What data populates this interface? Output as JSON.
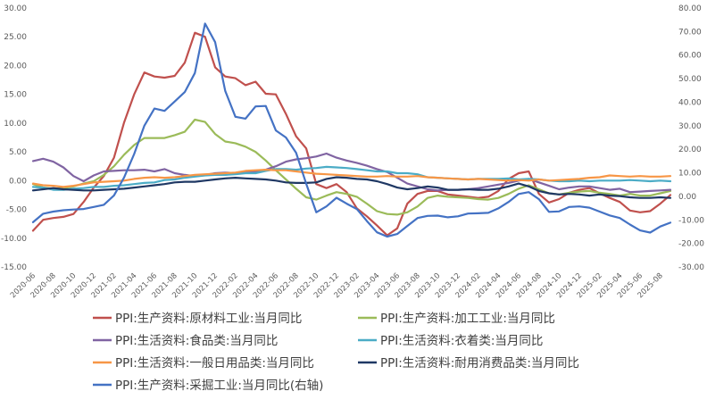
{
  "chart_data": {
    "type": "line",
    "x": [
      "2020-06",
      "2020-07",
      "2020-08",
      "2020-09",
      "2020-10",
      "2020-11",
      "2020-12",
      "2021-01",
      "2021-02",
      "2021-03",
      "2021-04",
      "2021-05",
      "2021-06",
      "2021-07",
      "2021-08",
      "2021-09",
      "2021-10",
      "2021-11",
      "2021-12",
      "2022-01",
      "2022-02",
      "2022-03",
      "2022-04",
      "2022-05",
      "2022-06",
      "2022-07",
      "2022-08",
      "2022-09",
      "2022-10",
      "2022-11",
      "2022-12",
      "2023-01",
      "2023-02",
      "2023-03",
      "2023-04",
      "2023-05",
      "2023-06",
      "2023-07",
      "2023-08",
      "2023-09",
      "2023-10",
      "2023-11",
      "2023-12",
      "2024-01",
      "2024-02",
      "2024-03",
      "2024-04",
      "2024-05",
      "2024-06",
      "2024-07",
      "2024-08",
      "2024-09",
      "2024-10",
      "2024-11",
      "2024-12",
      "2025-01",
      "2025-02",
      "2025-03",
      "2025-04",
      "2025-05",
      "2025-06",
      "2025-07",
      "2025-08",
      "2025-09"
    ],
    "x_tick_labels": [
      "2020-06",
      "2020-08",
      "2020-10",
      "2020-12",
      "2021-02",
      "2021-04",
      "2021-06",
      "2021-08",
      "2021-10",
      "2021-12",
      "2022-02",
      "2022-04",
      "2022-06",
      "2022-08",
      "2022-10",
      "2022-12",
      "2023-02",
      "2023-04",
      "2023-06",
      "2023-08",
      "2023-10",
      "2023-12",
      "2024-02",
      "2024-04",
      "2024-06",
      "2024-08",
      "2024-10",
      "2024-12",
      "2025-02",
      "2025-04",
      "2025-06",
      "2025-08"
    ],
    "y_left": {
      "min": -15,
      "max": 30,
      "step": 5,
      "tick_labels": [
        "30.00",
        "25.00",
        "20.00",
        "15.00",
        "10.00",
        "5.00",
        "0.00",
        "-5.00",
        "-10.00",
        "-15.00"
      ]
    },
    "y_right": {
      "min": -30,
      "max": 80,
      "step": 10,
      "tick_labels": [
        "80.00",
        "70.00",
        "60.00",
        "50.00",
        "40.00",
        "30.00",
        "20.00",
        "10.00",
        "0.00",
        "-10.00",
        "-20.00",
        "-30.00"
      ]
    },
    "grid": false,
    "legend_position": "bottom",
    "series": [
      {
        "name": "PPI:生产资料:原材料工业:当月同比",
        "color": "#c0504d",
        "axis": "left",
        "values": [
          -8.7,
          -6.8,
          -6.5,
          -6.3,
          -5.8,
          -3.7,
          -1.2,
          0.8,
          4.0,
          10.1,
          15.0,
          18.8,
          18.1,
          17.9,
          18.2,
          20.5,
          25.7,
          25.0,
          19.7,
          18.1,
          17.8,
          16.6,
          17.2,
          15.1,
          15.0,
          11.6,
          7.7,
          5.6,
          -0.6,
          -1.3,
          -0.6,
          -2.0,
          -4.8,
          -6.2,
          -7.8,
          -9.5,
          -8.3,
          -4.0,
          -2.3,
          -1.8,
          -1.8,
          -2.4,
          -2.6,
          -2.8,
          -3.0,
          -2.8,
          -1.8,
          0.3,
          1.3,
          1.6,
          -2.3,
          -3.8,
          -3.2,
          -2.1,
          -1.6,
          -1.3,
          -2.2,
          -3.0,
          -3.7,
          -5.2,
          -5.5,
          -5.3,
          -4.0,
          -2.5
        ]
      },
      {
        "name": "PPI:生产资料:加工工业:当月同比",
        "color": "#9bbb59",
        "axis": "left",
        "values": [
          -0.6,
          -1.2,
          -1.4,
          -1.3,
          -1.0,
          -0.5,
          -0.1,
          1.0,
          2.5,
          4.5,
          6.2,
          7.4,
          7.4,
          7.4,
          7.9,
          8.5,
          10.6,
          10.2,
          8.1,
          6.8,
          6.5,
          5.9,
          5.0,
          3.5,
          1.8,
          0.2,
          -1.4,
          -2.9,
          -3.3,
          -2.6,
          -2.0,
          -2.3,
          -2.8,
          -4.0,
          -5.3,
          -5.8,
          -5.9,
          -5.5,
          -4.5,
          -3.0,
          -2.6,
          -2.8,
          -2.9,
          -3.0,
          -3.2,
          -3.3,
          -3.0,
          -2.3,
          -1.4,
          -0.8,
          -1.5,
          -2.2,
          -2.4,
          -2.1,
          -1.9,
          -1.8,
          -2.1,
          -2.3,
          -2.6,
          -2.3,
          -2.6,
          -2.6,
          -2.2,
          -1.8
        ]
      },
      {
        "name": "PPI:生活资料:食品类:当月同比",
        "color": "#8064a2",
        "axis": "left",
        "values": [
          3.4,
          3.8,
          3.3,
          2.3,
          0.8,
          -0.1,
          0.9,
          1.6,
          1.7,
          1.8,
          1.8,
          1.9,
          1.6,
          2.0,
          1.3,
          1.0,
          0.8,
          1.0,
          1.3,
          1.4,
          1.3,
          1.5,
          1.6,
          1.9,
          2.5,
          3.3,
          3.7,
          3.9,
          4.2,
          4.7,
          4.0,
          3.5,
          3.1,
          2.6,
          2.0,
          1.5,
          0.5,
          -0.5,
          -1.0,
          -1.5,
          -1.7,
          -1.6,
          -1.6,
          -1.5,
          -1.3,
          -1.0,
          -0.7,
          -0.4,
          0.0,
          0.3,
          -0.3,
          -0.9,
          -1.5,
          -1.2,
          -1.0,
          -1.0,
          -1.3,
          -1.6,
          -1.4,
          -2.0,
          -1.9,
          -1.8,
          -1.7,
          -1.6
        ]
      },
      {
        "name": "PPI:生活资料:衣着类:当月同比",
        "color": "#4bacc6",
        "axis": "left",
        "values": [
          -1.1,
          -1.2,
          -1.6,
          -1.6,
          -1.4,
          -1.3,
          -1.1,
          -1.1,
          -0.9,
          -0.8,
          -0.6,
          -0.4,
          -0.3,
          0.1,
          0.2,
          0.5,
          0.7,
          0.9,
          1.0,
          1.0,
          1.1,
          1.3,
          1.3,
          1.7,
          2.0,
          2.0,
          1.9,
          2.1,
          2.2,
          2.4,
          2.3,
          2.2,
          2.0,
          1.8,
          1.6,
          1.6,
          1.3,
          1.3,
          1.1,
          0.6,
          0.5,
          0.4,
          0.3,
          0.2,
          0.3,
          0.3,
          0.3,
          0.4,
          0.2,
          0.3,
          0.2,
          0.0,
          -0.1,
          -0.1,
          0.0,
          -0.1,
          0.0,
          0.0,
          0.0,
          0.1,
          0.0,
          -0.1,
          0.0,
          -0.1
        ]
      },
      {
        "name": "PPI:生活资料:一般日用品类:当月同比",
        "color": "#f79646",
        "axis": "left",
        "values": [
          -0.5,
          -0.8,
          -0.9,
          -1.1,
          -0.9,
          -0.6,
          -0.3,
          -0.2,
          -0.1,
          0.0,
          0.3,
          0.5,
          0.6,
          0.5,
          0.6,
          0.8,
          1.0,
          1.1,
          1.2,
          1.3,
          1.4,
          1.7,
          1.8,
          1.9,
          1.8,
          1.8,
          1.6,
          1.4,
          1.2,
          1.1,
          1.0,
          0.9,
          0.8,
          0.7,
          0.7,
          0.8,
          0.7,
          0.7,
          0.8,
          0.6,
          0.5,
          0.4,
          0.3,
          0.2,
          0.3,
          0.2,
          0.1,
          0.0,
          0.1,
          0.0,
          0.2,
          0.0,
          0.1,
          0.2,
          0.3,
          0.5,
          0.6,
          0.9,
          0.8,
          0.7,
          0.8,
          0.7,
          0.7,
          0.8
        ]
      },
      {
        "name": "PPI:生活资料:耐用消费品类:当月同比",
        "color": "#1f3864",
        "axis": "left",
        "values": [
          -1.7,
          -1.5,
          -1.3,
          -1.5,
          -1.6,
          -1.7,
          -1.7,
          -1.6,
          -1.5,
          -1.4,
          -1.2,
          -1.0,
          -0.8,
          -0.6,
          -0.3,
          -0.2,
          -0.2,
          0.0,
          0.2,
          0.4,
          0.5,
          0.4,
          0.3,
          0.2,
          0.0,
          -0.3,
          -0.4,
          -0.4,
          -0.3,
          0.3,
          0.6,
          0.5,
          0.3,
          0.2,
          -0.1,
          -0.6,
          -1.2,
          -1.5,
          -1.3,
          -1.0,
          -1.2,
          -1.6,
          -1.6,
          -1.5,
          -1.6,
          -1.6,
          -1.4,
          -1.0,
          -0.5,
          -1.0,
          -1.8,
          -2.2,
          -2.4,
          -2.3,
          -2.4,
          -2.6,
          -2.4,
          -2.6,
          -2.7,
          -2.9,
          -3.0,
          -3.0,
          -2.9,
          -3.0
        ]
      },
      {
        "name": "PPI:生产资料:采掘工业:当月同比(右轴)",
        "color": "#4472c4",
        "axis": "right",
        "values": [
          -11.0,
          -7.4,
          -6.5,
          -5.9,
          -5.6,
          -5.4,
          -4.5,
          -3.6,
          0.4,
          8.0,
          18.0,
          30.0,
          37.3,
          36.3,
          40.3,
          44.3,
          52.4,
          73.4,
          65.5,
          44.8,
          33.8,
          33.0,
          38.2,
          38.4,
          28.0,
          25.0,
          18.5,
          5.4,
          -6.8,
          -4.3,
          -0.6,
          -3.1,
          -5.4,
          -10.5,
          -15.3,
          -17.1,
          -16.0,
          -12.6,
          -9.2,
          -8.3,
          -8.2,
          -8.9,
          -8.5,
          -7.3,
          -7.2,
          -7.0,
          -5.1,
          -2.4,
          1.0,
          1.8,
          -1.2,
          -6.6,
          -6.4,
          -4.5,
          -4.3,
          -4.8,
          -6.5,
          -8.1,
          -9.2,
          -12.0,
          -14.5,
          -15.4,
          -12.8,
          -11.2
        ]
      }
    ]
  }
}
